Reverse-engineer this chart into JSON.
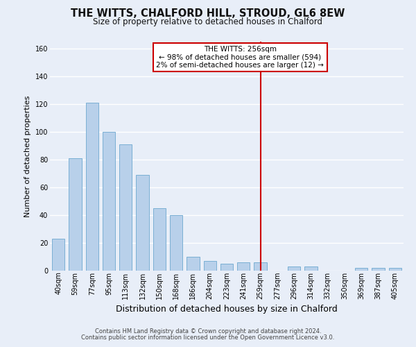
{
  "title": "THE WITTS, CHALFORD HILL, STROUD, GL6 8EW",
  "subtitle": "Size of property relative to detached houses in Chalford",
  "xlabel": "Distribution of detached houses by size in Chalford",
  "ylabel": "Number of detached properties",
  "footer1": "Contains HM Land Registry data © Crown copyright and database right 2024.",
  "footer2": "Contains public sector information licensed under the Open Government Licence v3.0.",
  "categories": [
    "40sqm",
    "59sqm",
    "77sqm",
    "95sqm",
    "113sqm",
    "132sqm",
    "150sqm",
    "168sqm",
    "186sqm",
    "204sqm",
    "223sqm",
    "241sqm",
    "259sqm",
    "277sqm",
    "296sqm",
    "314sqm",
    "332sqm",
    "350sqm",
    "369sqm",
    "387sqm",
    "405sqm"
  ],
  "values": [
    23,
    81,
    121,
    100,
    91,
    69,
    45,
    40,
    10,
    7,
    5,
    6,
    6,
    0,
    3,
    3,
    0,
    0,
    2,
    2,
    2
  ],
  "bar_color": "#b8d0ea",
  "bar_edge_color": "#7aafd4",
  "bg_color": "#e8eef8",
  "grid_color": "#ffffff",
  "vline_x_index": 12,
  "vline_color": "#cc0000",
  "annotation_text": "THE WITTS: 256sqm\n← 98% of detached houses are smaller (594)\n2% of semi-detached houses are larger (12) →",
  "annotation_box_color": "#cc0000",
  "ylim": [
    0,
    165
  ],
  "yticks": [
    0,
    20,
    40,
    60,
    80,
    100,
    120,
    140,
    160
  ],
  "title_fontsize": 10.5,
  "subtitle_fontsize": 8.5,
  "ylabel_fontsize": 8,
  "xlabel_fontsize": 9,
  "tick_fontsize": 7,
  "footer_fontsize": 6,
  "bar_width": 0.75
}
